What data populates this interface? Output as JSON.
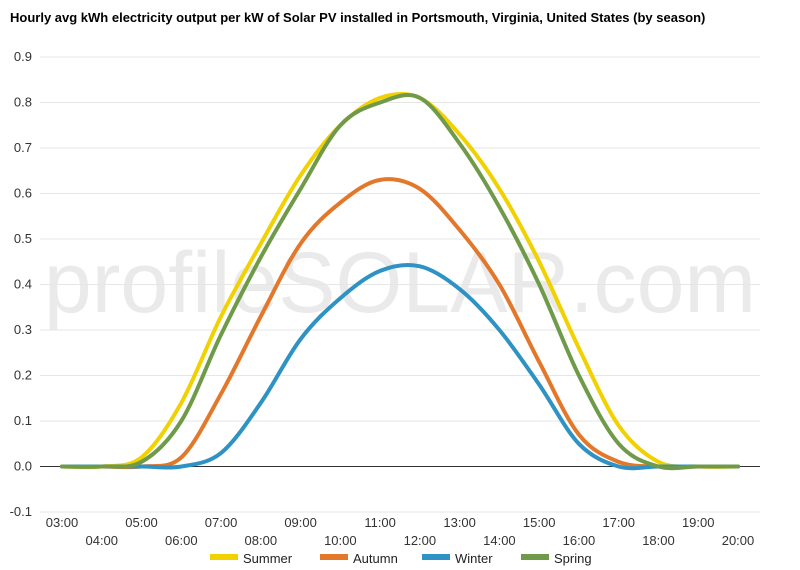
{
  "chart_data": {
    "type": "line",
    "title": "Hourly avg kWh electricity output per kW of Solar PV installed in Portsmouth, Virginia, United States (by season)",
    "xlabel": "",
    "ylabel": "",
    "categories": [
      "03:00",
      "04:00",
      "05:00",
      "06:00",
      "07:00",
      "08:00",
      "09:00",
      "10:00",
      "11:00",
      "12:00",
      "13:00",
      "14:00",
      "15:00",
      "16:00",
      "17:00",
      "18:00",
      "19:00",
      "20:00"
    ],
    "ylim": [
      -0.1,
      0.9
    ],
    "yticks": [
      -0.1,
      0.0,
      0.1,
      0.2,
      0.3,
      0.4,
      0.5,
      0.6,
      0.7,
      0.8,
      0.9
    ],
    "ytick_labels": [
      "-0.1",
      "0.0",
      "0.1",
      "0.2",
      "0.3",
      "0.4",
      "0.5",
      "0.6",
      "0.7",
      "0.8",
      "0.9"
    ],
    "series": [
      {
        "name": "Summer",
        "color": "#f2d100",
        "values": [
          0.0,
          0.0,
          0.02,
          0.14,
          0.33,
          0.49,
          0.64,
          0.75,
          0.81,
          0.81,
          0.73,
          0.61,
          0.45,
          0.26,
          0.09,
          0.01,
          0.0,
          0.0
        ]
      },
      {
        "name": "Autumn",
        "color": "#e3782a",
        "values": [
          0.0,
          0.0,
          0.0,
          0.02,
          0.16,
          0.33,
          0.49,
          0.58,
          0.63,
          0.61,
          0.52,
          0.4,
          0.23,
          0.07,
          0.01,
          0.0,
          0.0,
          0.0
        ]
      },
      {
        "name": "Winter",
        "color": "#2e93c4",
        "values": [
          0.0,
          0.0,
          0.0,
          0.0,
          0.03,
          0.14,
          0.28,
          0.37,
          0.43,
          0.44,
          0.39,
          0.3,
          0.18,
          0.05,
          0.0,
          0.0,
          0.0,
          0.0
        ]
      },
      {
        "name": "Spring",
        "color": "#6f9a4a",
        "values": [
          0.0,
          0.0,
          0.01,
          0.1,
          0.29,
          0.46,
          0.61,
          0.75,
          0.8,
          0.81,
          0.71,
          0.57,
          0.4,
          0.2,
          0.05,
          0.0,
          0.0,
          0.0
        ]
      }
    ],
    "grid": "horizontal",
    "legend": "bottom"
  },
  "watermark": "profileSOLAR.com"
}
